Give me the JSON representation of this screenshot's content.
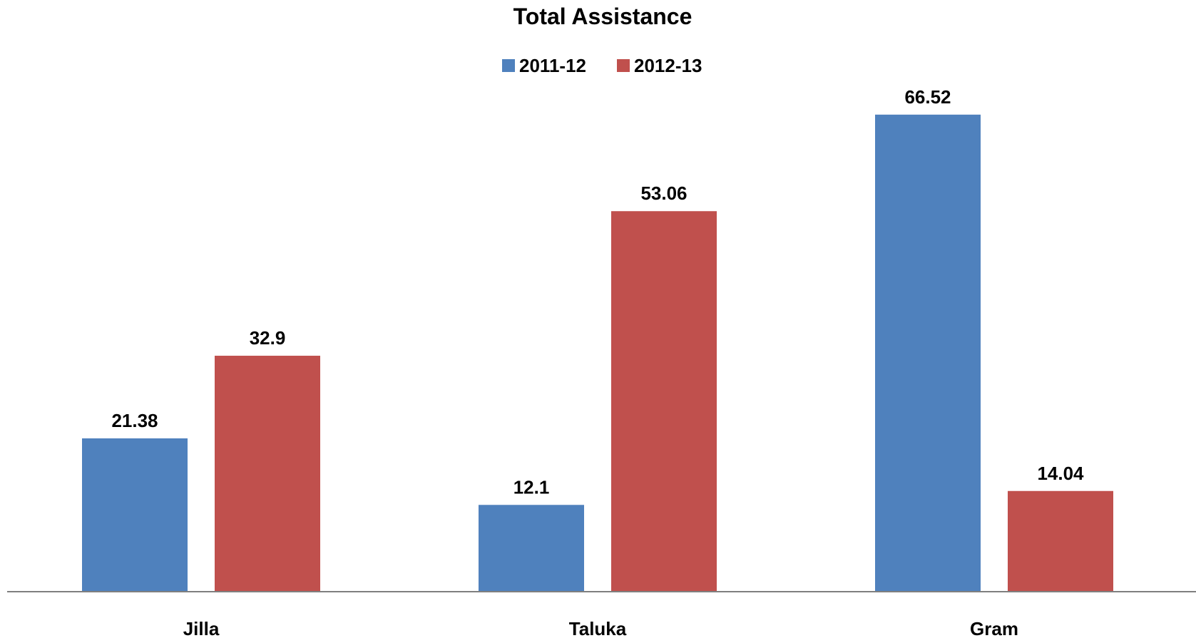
{
  "chart_data": {
    "type": "bar",
    "title": "Total Assistance",
    "categories": [
      "Jilla",
      "Taluka",
      "Gram"
    ],
    "series": [
      {
        "name": "2011-12",
        "color": "#4F81BD",
        "values": [
          21.38,
          12.1,
          66.52
        ]
      },
      {
        "name": "2012-13",
        "color": "#C0504D",
        "values": [
          32.9,
          53.06,
          14.04
        ]
      }
    ],
    "data_labels": [
      [
        "21.38",
        "12.1",
        "66.52"
      ],
      [
        "32.9",
        "53.06",
        "14.04"
      ]
    ],
    "ylim": [
      0,
      70
    ],
    "grid": false,
    "legend_position": "top-center",
    "axis_color": "#7f7f7f"
  }
}
